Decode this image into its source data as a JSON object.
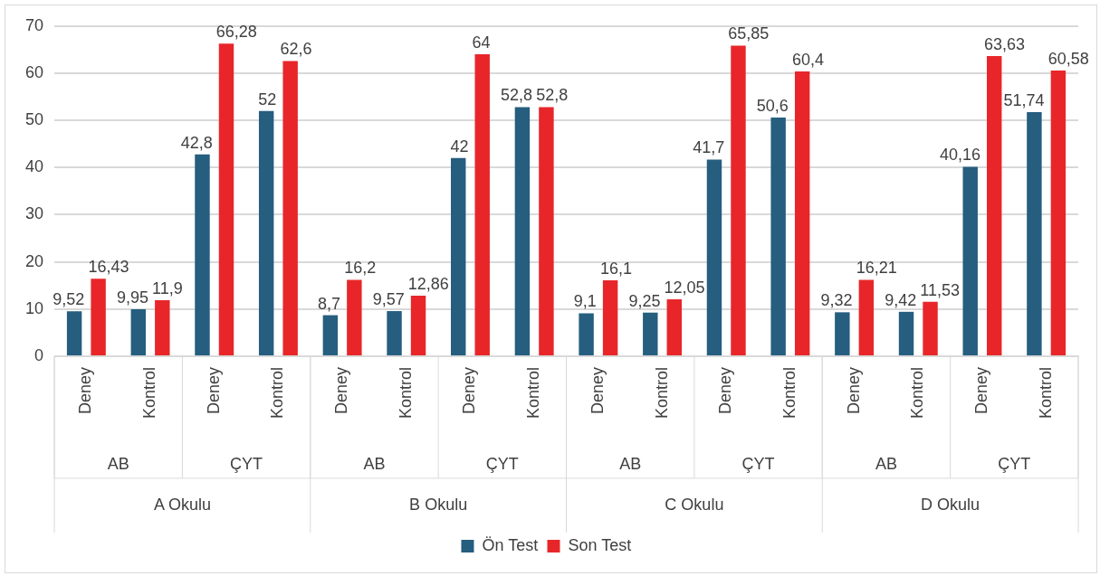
{
  "chart_data": {
    "type": "bar",
    "categories": [
      "Deney",
      "Kontrol",
      "Deney",
      "Kontrol",
      "Deney",
      "Kontrol",
      "Deney",
      "Kontrol",
      "Deney",
      "Kontrol",
      "Deney",
      "Kontrol",
      "Deney",
      "Kontrol",
      "Deney",
      "Kontrol"
    ],
    "series": [
      {
        "name": "Ön Test",
        "color": "#255e7e",
        "values": [
          9.52,
          9.95,
          42.8,
          52,
          8.7,
          9.57,
          42,
          52.8,
          9.1,
          9.25,
          41.7,
          50.6,
          9.32,
          9.42,
          40.16,
          51.74
        ],
        "value_labels": [
          "9,52",
          "9,95",
          "42,8",
          "52",
          "8,7",
          "9,57",
          "42",
          "52,8",
          "9,1",
          "9,25",
          "41,7",
          "50,6",
          "9,32",
          "9,42",
          "40,16",
          "51,74"
        ]
      },
      {
        "name": "Son Test",
        "color": "#e8262a",
        "values": [
          16.43,
          11.9,
          66.28,
          62.6,
          16.2,
          12.86,
          64,
          52.8,
          16.1,
          12.05,
          65.85,
          60.4,
          16.21,
          11.53,
          63.63,
          60.58
        ],
        "value_labels": [
          "16,43",
          "11,9",
          "66,28",
          "62,6",
          "16,2",
          "12,86",
          "64",
          "52,8",
          "16,1",
          "12,05",
          "65,85",
          "60,4",
          "16,21",
          "11,53",
          "63,63",
          "60,58"
        ]
      }
    ],
    "annotations": [
      "AB",
      "ÇYT",
      "AB",
      "ÇYT",
      "AB",
      "ÇYT",
      "AB",
      "ÇYT",
      "A Okulu",
      "B Okulu",
      "C Okulu",
      "D Okulu"
    ],
    "ylim": [
      0,
      70
    ],
    "yticks": [
      0,
      10,
      20,
      30,
      40,
      50,
      60,
      70
    ],
    "grid": "y",
    "legend": "bottom"
  }
}
